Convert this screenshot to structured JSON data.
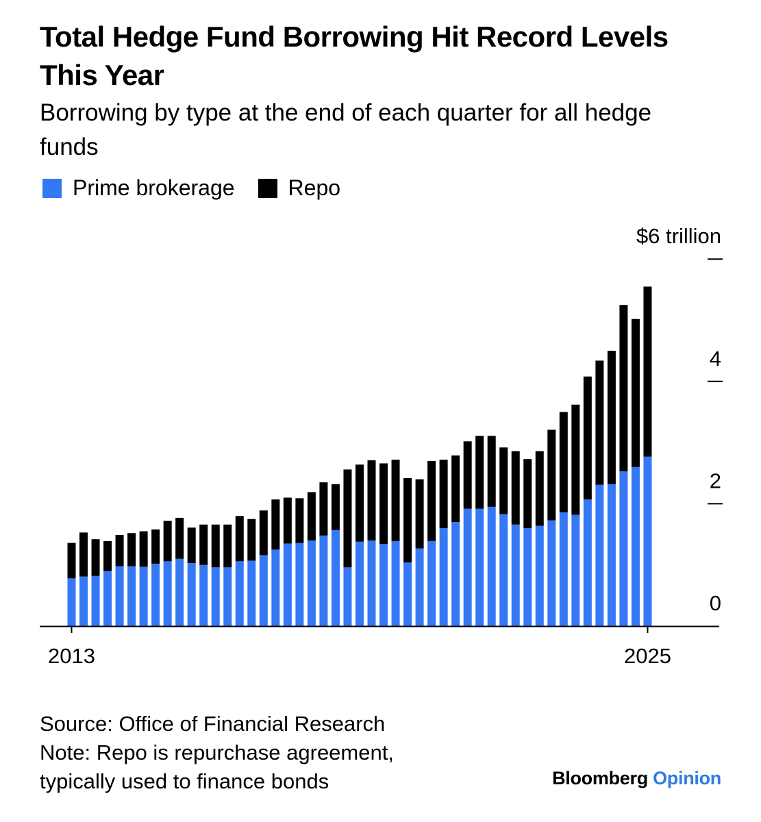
{
  "chart_data": {
    "type": "bar",
    "stacked": true,
    "title": "Total Hedge Fund Borrowing Hit Record Levels This Year",
    "subtitle": "Borrowing by type at the end of each quarter for all hedge funds",
    "y_unit_label": "$6 trillion",
    "ylim": [
      0,
      6
    ],
    "y_ticks": [
      {
        "value": 0,
        "label": "0"
      },
      {
        "value": 2,
        "label": "2"
      },
      {
        "value": 4,
        "label": "4"
      },
      {
        "value": 6,
        "label": "$6 trillion"
      }
    ],
    "x_tick_labels": [
      {
        "index": 0,
        "label": "2013"
      },
      {
        "index": 48,
        "label": "2025"
      }
    ],
    "grid": false,
    "legend_position": "top-left",
    "series": [
      {
        "name": "Prime brokerage",
        "color": "#3478f6",
        "values": [
          0.78,
          0.81,
          0.82,
          0.9,
          0.98,
          0.98,
          0.97,
          1.02,
          1.06,
          1.1,
          1.03,
          1.0,
          0.96,
          0.96,
          1.06,
          1.07,
          1.16,
          1.25,
          1.35,
          1.36,
          1.4,
          1.48,
          1.57,
          0.96,
          1.38,
          1.4,
          1.34,
          1.39,
          1.04,
          1.27,
          1.39,
          1.6,
          1.7,
          1.92,
          1.92,
          1.95,
          1.83,
          1.66,
          1.6,
          1.64,
          1.73,
          1.86,
          1.82,
          2.07,
          2.31,
          2.32,
          2.53,
          2.6,
          2.77
        ]
      },
      {
        "name": "Repo",
        "color": "#000000",
        "values": [
          0.58,
          0.72,
          0.6,
          0.49,
          0.51,
          0.54,
          0.58,
          0.56,
          0.66,
          0.67,
          0.58,
          0.66,
          0.7,
          0.7,
          0.74,
          0.68,
          0.73,
          0.82,
          0.75,
          0.73,
          0.79,
          0.87,
          0.75,
          1.6,
          1.26,
          1.31,
          1.32,
          1.33,
          1.38,
          1.13,
          1.31,
          1.12,
          1.09,
          1.1,
          1.19,
          1.16,
          1.09,
          1.2,
          1.13,
          1.22,
          1.48,
          1.64,
          1.8,
          2.01,
          2.03,
          2.18,
          2.72,
          2.42,
          2.78
        ]
      }
    ]
  },
  "legend": [
    {
      "label": "Prime brokerage",
      "color": "#3478f6"
    },
    {
      "label": "Repo",
      "color": "#000000"
    }
  ],
  "footer": {
    "source": "Source: Office of Financial Research",
    "note_line1": "Note: Repo is repurchase agreement,",
    "note_line2": "typically used to finance bonds"
  },
  "brand": {
    "name": "Bloomberg",
    "section": "Opinion"
  }
}
